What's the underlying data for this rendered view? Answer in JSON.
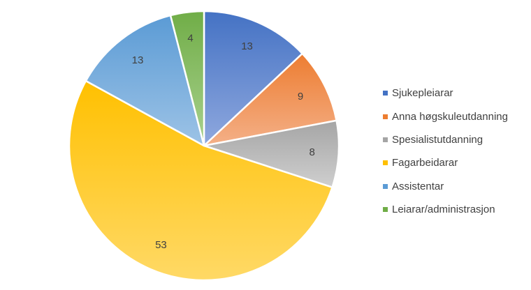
{
  "chart_data": {
    "type": "pie",
    "title": "",
    "categories": [
      "Sjukepleiarar",
      "Anna høgskuleutdanning",
      "Spesialistutdanning",
      "Fagarbeidarar",
      "Assistentar",
      "Leiarar/administrasjon"
    ],
    "values": [
      13,
      9,
      8,
      53,
      13,
      4
    ],
    "colors": [
      "#4472c4",
      "#ed7d31",
      "#a5a5a5",
      "#ffc000",
      "#5b9bd5",
      "#70ad47"
    ],
    "gradient_light_colors": [
      "#8fa8de",
      "#f4b088",
      "#cfcfcf",
      "#ffd966",
      "#9dc3e6",
      "#a9d18e"
    ],
    "data_labels": [
      "13",
      "9",
      "8",
      "53",
      "13",
      "4"
    ],
    "legend_position": "right"
  }
}
